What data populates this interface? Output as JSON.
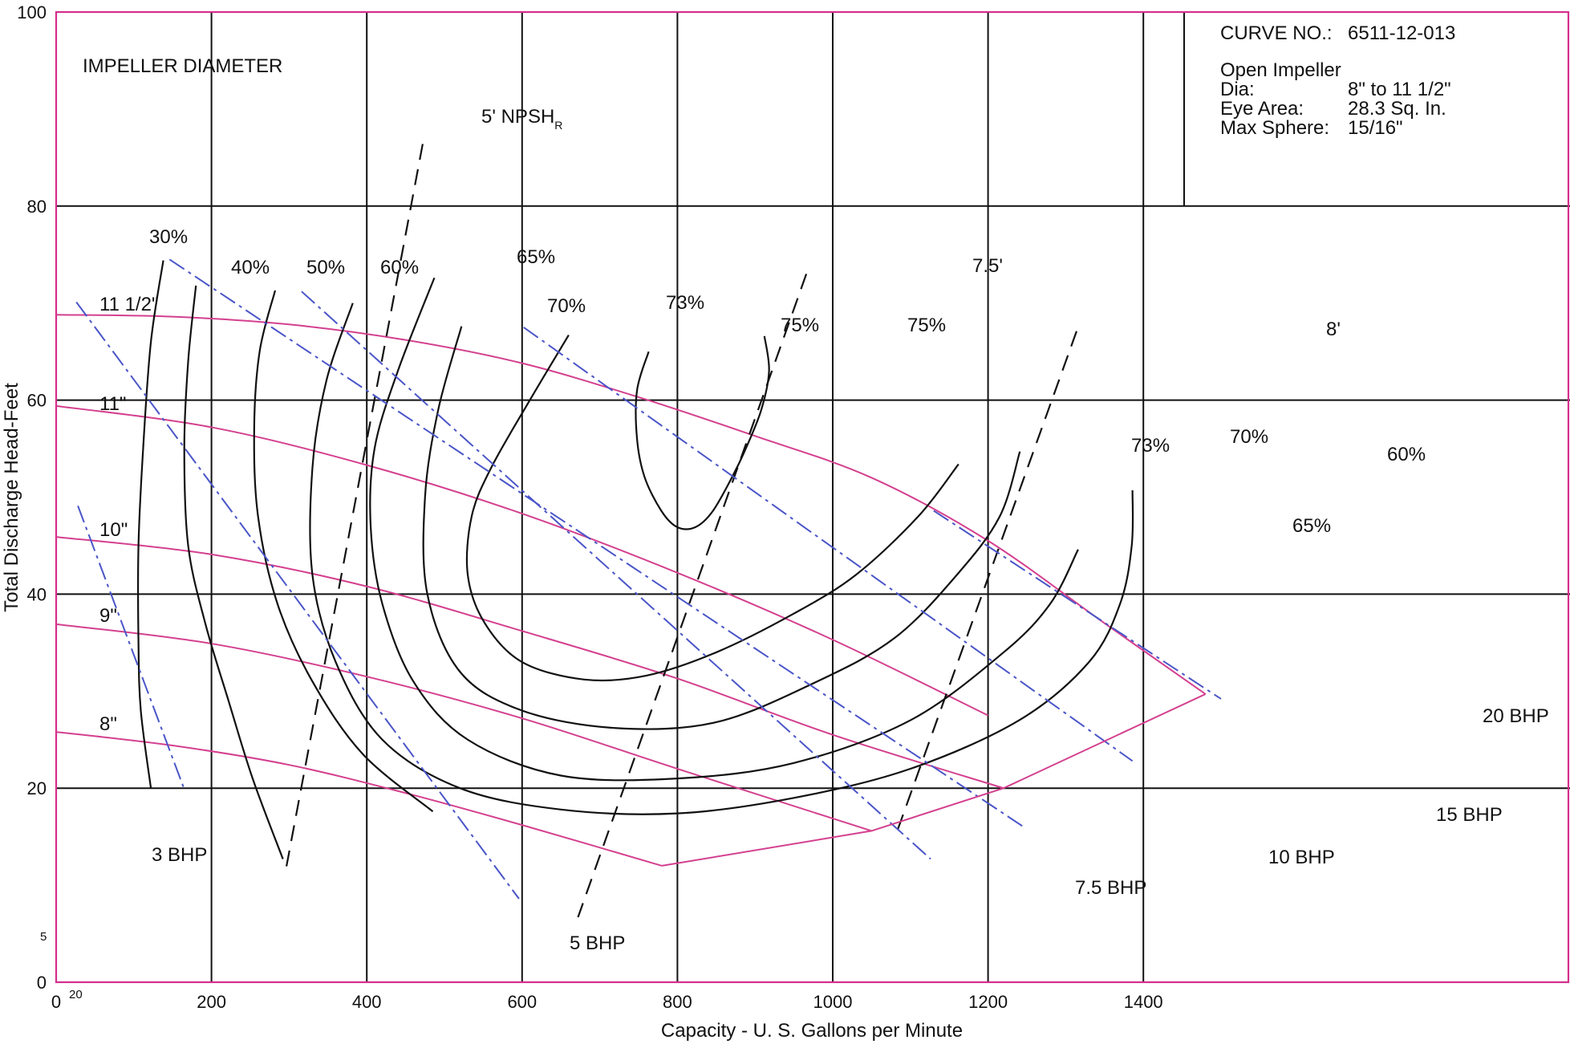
{
  "chart_data": {
    "type": "line",
    "title": "IMPELLER DIAMETER",
    "xlabel": "Capacity - U. S. Gallons per Minute",
    "ylabel": "Total Discharge Head-Feet",
    "xlim": [
      0,
      1500
    ],
    "ylim": [
      0,
      100
    ],
    "x_ticks": [
      "0",
      "200",
      "400",
      "600",
      "800",
      "1000",
      "1200",
      "1400"
    ],
    "x_tick_values": [
      0,
      200,
      400,
      600,
      800,
      1000,
      1200,
      1400
    ],
    "y_ticks": [
      "0",
      "20",
      "40",
      "60",
      "80",
      "100"
    ],
    "y_tick_values": [
      0,
      20,
      40,
      60,
      80,
      100
    ],
    "extra_ticks": {
      "x_20": "20",
      "y_5": "5"
    },
    "grid": true,
    "info_box": {
      "curve_no_label": "CURVE NO.:",
      "curve_no": "6511-12-013",
      "impeller": "Open Impeller",
      "dia_label": "Dia:",
      "dia": "8\" to 11 1/2\"",
      "eye_label": "Eye Area:",
      "eye": "28.3 Sq. In.",
      "sphere_label": "Max Sphere:",
      "sphere": "15/16\""
    },
    "series": [
      {
        "name": "11 1/2\"",
        "kind": "head",
        "x": [
          0,
          150,
          300,
          450,
          600,
          750,
          900,
          1050,
          1200,
          1350,
          1480
        ],
        "y": [
          68.8,
          68.6,
          67.8,
          66.2,
          63.8,
          60.3,
          56.3,
          52,
          45.5,
          37,
          29.7
        ]
      },
      {
        "name": "11\"",
        "kind": "head",
        "x": [
          0,
          200,
          400,
          600,
          800,
          1000,
          1200
        ],
        "y": [
          59.4,
          57.2,
          53.3,
          48.3,
          42.2,
          35.3,
          27.5
        ]
      },
      {
        "name": "10\"",
        "kind": "head",
        "x": [
          0,
          200,
          400,
          600,
          800,
          1000,
          1220
        ],
        "y": [
          45.9,
          44.1,
          40.8,
          36.2,
          31.3,
          25.5,
          20
        ]
      },
      {
        "name": "9\"",
        "kind": "head",
        "x": [
          0,
          200,
          400,
          600,
          800,
          1050
        ],
        "y": [
          36.9,
          34.9,
          31.5,
          27.2,
          22,
          15.6
        ]
      },
      {
        "name": "8\"",
        "kind": "head",
        "x": [
          0,
          150,
          300,
          450,
          600,
          780
        ],
        "y": [
          25.8,
          24.4,
          22.4,
          19.5,
          16.2,
          12
        ]
      },
      {
        "name": "30%",
        "kind": "efficiency",
        "x": [
          138,
          122,
          112,
          106,
          106,
          109,
          122
        ],
        "y": [
          74.4,
          66,
          55,
          45,
          35,
          28,
          20
        ]
      },
      {
        "name": "40%",
        "kind": "efficiency",
        "x": [
          180,
          170,
          165,
          170,
          192,
          222,
          253,
          292
        ],
        "y": [
          71.8,
          64,
          55,
          45,
          37,
          29,
          21,
          12.7
        ]
      },
      {
        "name": "50%",
        "kind": "efficiency",
        "x": [
          282,
          262,
          255,
          260,
          285,
          330,
          395,
          485
        ],
        "y": [
          71.3,
          65,
          57,
          48,
          39,
          31,
          23.5,
          17.6
        ]
      },
      {
        "name": "60%",
        "kind": "efficiency",
        "x": [
          1386,
          1385,
          1370,
          1330,
          1240,
          1100,
          950,
          800,
          650,
          520,
          420,
          360,
          330,
          330,
          348,
          382
        ],
        "y": [
          50.7,
          45,
          39,
          33,
          27,
          22,
          19,
          17.4,
          17.8,
          20,
          25,
          33,
          42,
          53,
          62,
          70
        ]
      },
      {
        "name": "65%",
        "kind": "efficiency",
        "x": [
          1316,
          1280,
          1220,
          1100,
          950,
          800,
          650,
          530,
          460,
          420,
          405,
          410,
          440,
          487
        ],
        "y": [
          44.6,
          39,
          34,
          27,
          22.6,
          21,
          21.3,
          25,
          31,
          39,
          47,
          55,
          63,
          72.6
        ]
      },
      {
        "name": "70%",
        "kind": "efficiency",
        "x": [
          1241,
          1215,
          1160,
          1080,
          980,
          850,
          720,
          600,
          520,
          478,
          475,
          492,
          522
        ],
        "y": [
          54.7,
          48,
          42,
          35.5,
          31,
          26.8,
          26.2,
          28,
          32,
          40,
          50,
          59,
          67.6
        ]
      },
      {
        "name": "73%",
        "kind": "efficiency",
        "x": [
          1162,
          1110,
          1030,
          950,
          850,
          760,
          680,
          600,
          552,
          530,
          535,
          560,
          610,
          660
        ],
        "y": [
          53.4,
          48,
          42,
          38,
          34,
          31.6,
          31.2,
          33,
          37,
          42,
          48,
          53,
          60,
          66.7
        ]
      },
      {
        "name": "75%",
        "kind": "efficiency",
        "x": [
          763,
          748,
          748,
          758,
          780,
          800,
          823,
          845,
          870,
          888,
          908,
          918,
          912
        ],
        "y": [
          65,
          61,
          56,
          52,
          48.5,
          46.9,
          46.9,
          48.5,
          52,
          55,
          59,
          63,
          66.6
        ]
      },
      {
        "name": "5' NPSHᵣ",
        "kind": "npsh",
        "x": [
          472,
          296
        ],
        "y": [
          86.4,
          11.7
        ]
      },
      {
        "name": "7.5'",
        "kind": "npsh",
        "x": [
          966,
          672
        ],
        "y": [
          73,
          6.7
        ]
      },
      {
        "name": "8'",
        "kind": "npsh",
        "x": [
          1314,
          1084
        ],
        "y": [
          67.1,
          15.8
        ]
      },
      {
        "name": "3 BHP",
        "kind": "bhp",
        "x": [
          28,
          164
        ],
        "y": [
          49.1,
          20.1
        ]
      },
      {
        "name": "5 BHP",
        "kind": "bhp",
        "x": [
          26,
          596
        ],
        "y": [
          70.1,
          8.6
        ]
      },
      {
        "name": "5 BHP",
        "kind": "bhp",
        "x": [
          146,
          1246
        ],
        "y": [
          74.5,
          16
        ]
      },
      {
        "name": "7.5 BHP",
        "kind": "bhp",
        "x": [
          316,
          1126
        ],
        "y": [
          71.2,
          12.7
        ]
      },
      {
        "name": "10 BHP",
        "kind": "bhp",
        "x": [
          602,
          1386
        ],
        "y": [
          67.5,
          22.8
        ]
      },
      {
        "name": "20 BHP",
        "kind": "bhp",
        "x": [
          1130,
          1500
        ],
        "y": [
          48.6,
          29.2
        ]
      },
      {
        "name": "15 BHP",
        "kind": "endpoint",
        "x": [
          780,
          1050,
          1220,
          1480
        ],
        "y": [
          12,
          15.6,
          20,
          29.7
        ]
      }
    ],
    "labels": {
      "h115": "11 1/2\"",
      "h11": "11\"",
      "h10": "10\"",
      "h9": "9\"",
      "h8": "8\"",
      "e30": "30%",
      "e40": "40%",
      "e50": "50%",
      "e60a": "60%",
      "e65a": "65%",
      "e70a": "70%",
      "e73a": "73%",
      "e75a": "75%",
      "e75b": "75%",
      "e73b": "73%",
      "e70b": "70%",
      "e65b": "65%",
      "e60b": "60%",
      "npsh5": "5' NPSH",
      "npsh5_sub": "R",
      "npsh75": "7.5'",
      "npsh8": "8'",
      "b3": "3 BHP",
      "b5": "5 BHP",
      "b75": "7.5 BHP",
      "b10": "10 BHP",
      "b15": "15 BHP",
      "b20": "20 BHP"
    }
  },
  "colors": {
    "grid": "#111111",
    "frame": "#d42e8c",
    "head": "#d4408f",
    "bhp": "#4a55c8",
    "efficiency": "#111111"
  }
}
